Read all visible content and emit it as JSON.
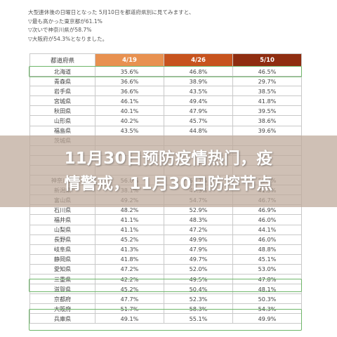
{
  "intro": {
    "line1": "大型連休後の日曜日となった 5月10日を都道府県別に見てみますと、",
    "line2": "▽最も高かった東京都が61.1%",
    "line3": "▽次いで神奈川県が58.7%",
    "line4": "▽大阪府が54.3%となりました。"
  },
  "table": {
    "headers": [
      "都道府県",
      "4/19",
      "4/26",
      "5/10"
    ],
    "rows": [
      [
        "北海道",
        "35.6%",
        "46.8%",
        "46.5%"
      ],
      [
        "青森県",
        "36.6%",
        "38.9%",
        "29.7%"
      ],
      [
        "岩手県",
        "36.6%",
        "43.5%",
        "38.5%"
      ],
      [
        "宮城県",
        "46.1%",
        "49.4%",
        "41.8%"
      ],
      [
        "秋田県",
        "40.1%",
        "47.9%",
        "39.5%"
      ],
      [
        "山形県",
        "40.2%",
        "45.7%",
        "38.6%"
      ],
      [
        "福島県",
        "43.5%",
        "44.8%",
        "39.6%"
      ],
      [
        "茨城県",
        "",
        "",
        ""
      ],
      [
        "",
        "",
        "",
        ""
      ],
      [
        "",
        "",
        "",
        ""
      ],
      [
        "",
        "",
        "",
        ""
      ],
      [
        "神奈川県",
        "56.0%",
        "61.7%",
        "58.7%"
      ],
      [
        "新潟県",
        "38.1%",
        "47.3%",
        "41.3%"
      ],
      [
        "富山県",
        "49.2%",
        "54.7%",
        "46.7%"
      ],
      [
        "石川県",
        "48.2%",
        "52.9%",
        "46.9%"
      ],
      [
        "福井県",
        "41.1%",
        "48.3%",
        "46.0%"
      ],
      [
        "山梨県",
        "41.1%",
        "47.2%",
        "44.1%"
      ],
      [
        "長野県",
        "45.2%",
        "49.9%",
        "46.0%"
      ],
      [
        "岐阜県",
        "41.3%",
        "47.9%",
        "48.8%"
      ],
      [
        "静岡県",
        "41.8%",
        "49.7%",
        "45.1%"
      ],
      [
        "愛知県",
        "47.2%",
        "52.0%",
        "53.0%"
      ],
      [
        "三重県",
        "42.2%",
        "49.5%",
        "47.8%"
      ],
      [
        "滋賀県",
        "45.2%",
        "50.4%",
        "48.1%"
      ],
      [
        "京都府",
        "47.7%",
        "52.3%",
        "50.3%"
      ],
      [
        "大阪府",
        "51.7%",
        "58.3%",
        "54.3%"
      ],
      [
        "兵庫県",
        "49.1%",
        "55.1%",
        "49.9%"
      ]
    ]
  },
  "overlay": {
    "line1": "11月30日预防疫情热门，疫",
    "line2": "情警戒，11月30日防控节点"
  }
}
